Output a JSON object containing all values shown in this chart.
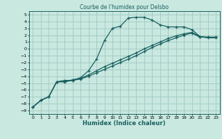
{
  "title": "Courbe de l'humidex pour Delsbo",
  "xlabel": "Humidex (Indice chaleur)",
  "bg_color": "#c8e8e0",
  "grid_color": "#a0c8c0",
  "line_color": "#1a6060",
  "xlim": [
    -0.5,
    23.5
  ],
  "ylim": [
    -9.5,
    5.5
  ],
  "xticks": [
    0,
    1,
    2,
    3,
    4,
    5,
    6,
    7,
    8,
    9,
    10,
    11,
    12,
    13,
    14,
    15,
    16,
    17,
    18,
    19,
    20,
    21,
    22,
    23
  ],
  "yticks": [
    5,
    4,
    3,
    2,
    1,
    0,
    -1,
    -2,
    -3,
    -4,
    -5,
    -6,
    -7,
    -8,
    -9
  ],
  "line1_x": [
    0,
    1,
    2,
    3,
    4,
    5,
    6,
    7,
    8,
    9,
    10,
    11,
    12,
    13,
    14,
    15,
    16,
    17,
    18,
    19,
    20,
    21,
    22,
    23
  ],
  "line1_y": [
    -8.5,
    -7.5,
    -7.0,
    -4.8,
    -4.6,
    -4.6,
    -4.2,
    -3.2,
    -1.5,
    1.2,
    3.0,
    3.3,
    4.5,
    4.6,
    4.6,
    4.2,
    3.5,
    3.2,
    3.2,
    3.2,
    2.8,
    1.8,
    1.7,
    1.7
  ],
  "line2_x": [
    0,
    1,
    2,
    3,
    4,
    5,
    6,
    7,
    8,
    9,
    10,
    11,
    12,
    13,
    14,
    15,
    16,
    17,
    18,
    19,
    20,
    21,
    22,
    23
  ],
  "line2_y": [
    -8.5,
    -7.5,
    -7.0,
    -4.8,
    -4.8,
    -4.6,
    -4.4,
    -4.0,
    -3.5,
    -3.0,
    -2.5,
    -2.0,
    -1.5,
    -1.0,
    -0.4,
    0.2,
    0.7,
    1.2,
    1.6,
    2.0,
    2.3,
    1.7,
    1.7,
    1.7
  ],
  "line3_x": [
    0,
    1,
    2,
    3,
    4,
    5,
    6,
    7,
    8,
    9,
    10,
    11,
    12,
    13,
    14,
    15,
    16,
    17,
    18,
    19,
    20,
    21,
    22,
    23
  ],
  "line3_y": [
    -8.5,
    -7.5,
    -7.0,
    -4.8,
    -4.8,
    -4.5,
    -4.3,
    -3.8,
    -3.2,
    -2.6,
    -2.1,
    -1.6,
    -1.1,
    -0.6,
    0.0,
    0.5,
    1.0,
    1.5,
    1.9,
    2.2,
    2.4,
    1.8,
    1.6,
    1.6
  ]
}
